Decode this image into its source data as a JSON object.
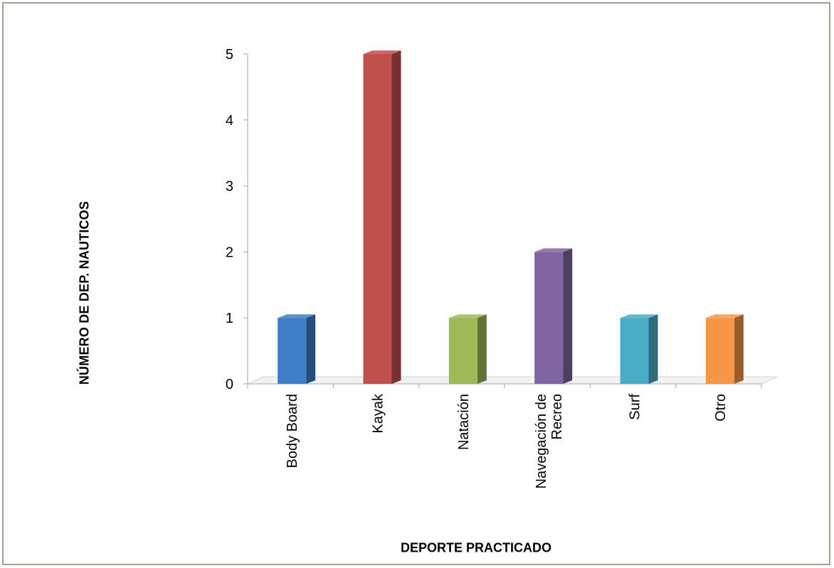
{
  "chart_data": {
    "type": "bar",
    "categories": [
      "Body Board",
      "Kayak",
      "Natación",
      "Navegación de Recreo",
      "Surf",
      "Otro"
    ],
    "category_lines": [
      [
        "Body Board"
      ],
      [
        "Kayak"
      ],
      [
        "Natación"
      ],
      [
        "Navegación de",
        "Recreo"
      ],
      [
        "Surf"
      ],
      [
        "Otro"
      ]
    ],
    "values": [
      1,
      5,
      1,
      2,
      1,
      1
    ],
    "colors": [
      "#3e7dc7",
      "#c0504d",
      "#9bbb59",
      "#8064a2",
      "#4bacc6",
      "#f79646"
    ],
    "xlabel": "DEPORTE PRACTICADO",
    "ylabel": "NÚMERO DE DEP. NAUTICOS",
    "ylim": [
      0,
      5
    ],
    "yticks": [
      0,
      1,
      2,
      3,
      4,
      5
    ],
    "grid": false,
    "legend": "none",
    "style": "3d"
  }
}
